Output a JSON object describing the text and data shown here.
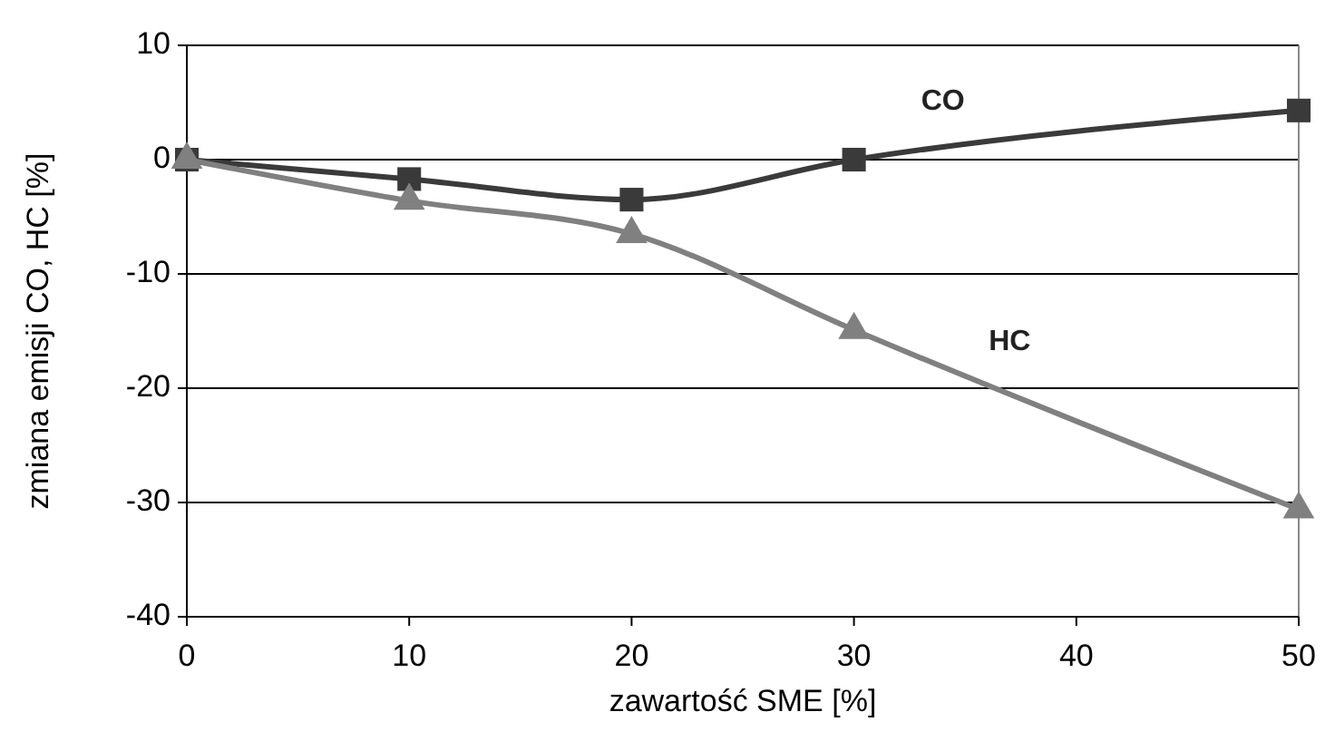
{
  "chart_data": {
    "type": "line",
    "xlabel": "zawartość SME [%]",
    "ylabel": "zmiana emisji CO, HC [%]",
    "x": [
      0,
      10,
      20,
      30,
      50
    ],
    "series": [
      {
        "name": "CO",
        "color": "#3a3a3a",
        "values": [
          0,
          -1.7,
          -3.5,
          0,
          4.3
        ],
        "marker": "square"
      },
      {
        "name": "HC",
        "color": "#808080",
        "values": [
          0,
          -3.6,
          -6.5,
          -14.9,
          -30.6
        ],
        "marker": "triangle"
      }
    ],
    "xlim": [
      0,
      50
    ],
    "xticks": [
      0,
      10,
      20,
      30,
      40,
      50
    ],
    "ylim": [
      -40,
      10
    ],
    "yticks": [
      -40,
      -30,
      -20,
      -10,
      0,
      10
    ],
    "grid": "y"
  }
}
